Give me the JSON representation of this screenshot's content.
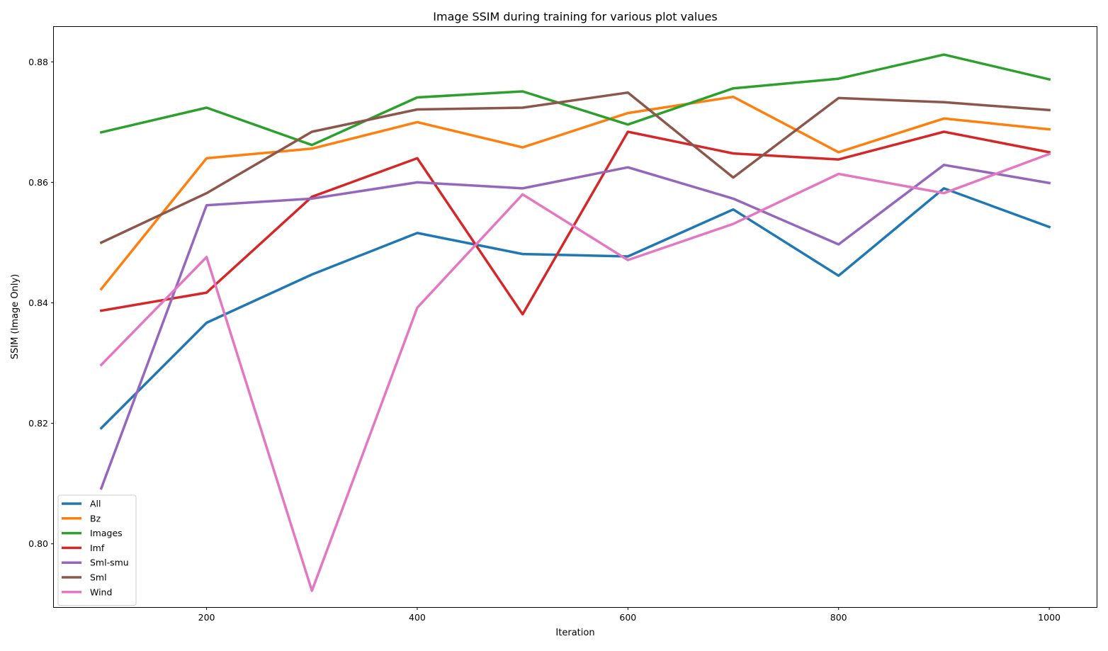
{
  "chart_data": {
    "type": "line",
    "title": "Image SSIM during training for various plot values",
    "xlabel": "Iteration",
    "ylabel": "SSIM (Image Only)",
    "xlim": [
      55,
      1045
    ],
    "ylim": [
      0.7895,
      0.8858
    ],
    "xticks": [
      200,
      400,
      600,
      800,
      1000
    ],
    "xtick_labels": [
      "200",
      "400",
      "600",
      "800",
      "1000"
    ],
    "yticks": [
      0.8,
      0.82,
      0.84,
      0.86,
      0.88
    ],
    "ytick_labels": [
      "0.80",
      "0.82",
      "0.84",
      "0.86",
      "0.88"
    ],
    "grid": false,
    "legend_position": "lower-left",
    "x": [
      100,
      200,
      300,
      400,
      500,
      600,
      700,
      800,
      900,
      1000
    ],
    "series": [
      {
        "name": "All",
        "color": "#1f77b4",
        "values": [
          0.8192,
          0.8367,
          0.8447,
          0.8516,
          0.8481,
          0.8477,
          0.8555,
          0.8445,
          0.859,
          0.8526
        ]
      },
      {
        "name": "Bz",
        "color": "#ff7f0e",
        "values": [
          0.8423,
          0.864,
          0.8656,
          0.87,
          0.8658,
          0.8715,
          0.8742,
          0.865,
          0.8706,
          0.8688
        ]
      },
      {
        "name": "Images",
        "color": "#2ca02c",
        "values": [
          0.8683,
          0.8724,
          0.8662,
          0.8741,
          0.8751,
          0.8696,
          0.8756,
          0.8772,
          0.8812,
          0.8771
        ]
      },
      {
        "name": "Imf",
        "color": "#d62728",
        "values": [
          0.8387,
          0.8417,
          0.8576,
          0.864,
          0.8381,
          0.8684,
          0.8648,
          0.8638,
          0.8684,
          0.865
        ]
      },
      {
        "name": "Sml-smu",
        "color": "#9467bd",
        "values": [
          0.8092,
          0.8562,
          0.8573,
          0.86,
          0.859,
          0.8625,
          0.8573,
          0.8497,
          0.8629,
          0.8599
        ]
      },
      {
        "name": "Sml",
        "color": "#8c564b",
        "values": [
          0.85,
          0.8582,
          0.8684,
          0.8721,
          0.8724,
          0.8749,
          0.8608,
          0.874,
          0.8733,
          0.872
        ]
      },
      {
        "name": "Wind",
        "color": "#e377c2",
        "values": [
          0.8297,
          0.8476,
          0.7922,
          0.8392,
          0.858,
          0.8471,
          0.8531,
          0.8614,
          0.8582,
          0.8647
        ]
      }
    ]
  }
}
